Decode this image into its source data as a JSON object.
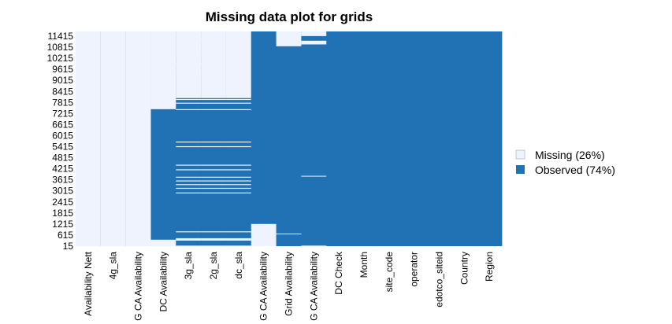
{
  "chart_data": {
    "type": "heatmap",
    "title": "Missing data plot for grids",
    "columns": [
      "Availability Nett",
      "4g_sla",
      "4G CA Availability",
      "DC Availability",
      "3g_sla",
      "2g_sla",
      "dc_sla",
      "3G CA Availability",
      "Grid Availability",
      "2G CA Availability",
      "DC Check",
      "Month",
      "site_code",
      "operator",
      "edotco_siteid",
      "Country",
      "Region"
    ],
    "column_tick_labels": [
      "Availability Nett",
      "4g_sla",
      "G CA Availability",
      "DC Availability",
      "3g_sla",
      "2g_sla",
      "dc_sla",
      "G CA Availability",
      "Grid Availability",
      "G CA Availability",
      "DC Check",
      "Month",
      "site_code",
      "operator",
      "edotco_siteid",
      "Country",
      "Region"
    ],
    "row_tick_labels": [
      "15",
      "615",
      "1215",
      "1815",
      "2415",
      "3015",
      "3615",
      "4215",
      "4815",
      "5415",
      "6015",
      "6615",
      "7215",
      "7815",
      "8415",
      "9015",
      "9615",
      "10215",
      "10815",
      "11415"
    ],
    "row_range": [
      1,
      11600
    ],
    "colors": {
      "missing": "#eef3fd",
      "observed": "#2171b5"
    },
    "legend": [
      {
        "label": "Missing (26%)",
        "state": "missing"
      },
      {
        "label": "Observed (74%)",
        "state": "observed"
      }
    ],
    "legend_position": "right",
    "missing_row_ranges": [
      {
        "column": "Availability Nett",
        "ranges": [
          [
            1,
            11600
          ]
        ]
      },
      {
        "column": "4g_sla",
        "ranges": [
          [
            1,
            11600
          ]
        ]
      },
      {
        "column": "4G CA Availability",
        "ranges": [
          [
            1,
            11600
          ]
        ]
      },
      {
        "column": "DC Availability",
        "ranges": [
          [
            9600,
            10800
          ],
          [
            1,
            350
          ],
          [
            7400,
            11600
          ]
        ]
      },
      {
        "column": "3g_sla",
        "ranges": [
          [
            1,
            30
          ],
          [
            300,
            430
          ],
          [
            750,
            800
          ],
          [
            2850,
            2900
          ],
          [
            3100,
            3150
          ],
          [
            3300,
            3350
          ],
          [
            3500,
            3550
          ],
          [
            3700,
            3750
          ],
          [
            4100,
            4150
          ],
          [
            4350,
            4400
          ],
          [
            5350,
            5400
          ],
          [
            5600,
            5650
          ],
          [
            7350,
            7400
          ],
          [
            7700,
            7750
          ],
          [
            7900,
            7950
          ],
          [
            9400,
            9450
          ],
          [
            9800,
            9900
          ],
          [
            10300,
            10350
          ],
          [
            10500,
            10550
          ],
          [
            10650,
            10700
          ],
          [
            10850,
            10900
          ],
          [
            11000,
            11050
          ],
          [
            11150,
            11250
          ],
          [
            11350,
            11450
          ],
          [
            8000,
            11600
          ]
        ]
      },
      {
        "column": "2g_sla",
        "ranges": [
          [
            1,
            30
          ],
          [
            300,
            430
          ],
          [
            750,
            800
          ],
          [
            2850,
            2900
          ],
          [
            3100,
            3150
          ],
          [
            3300,
            3350
          ],
          [
            3500,
            3550
          ],
          [
            3700,
            3750
          ],
          [
            4100,
            4150
          ],
          [
            4350,
            4400
          ],
          [
            5350,
            5400
          ],
          [
            5600,
            5650
          ],
          [
            7350,
            7400
          ],
          [
            7700,
            7750
          ],
          [
            7900,
            7950
          ],
          [
            9400,
            9450
          ],
          [
            9800,
            9900
          ],
          [
            10300,
            10350
          ],
          [
            10500,
            10550
          ],
          [
            10650,
            10700
          ],
          [
            10850,
            10900
          ],
          [
            11000,
            11050
          ],
          [
            11150,
            11250
          ],
          [
            11350,
            11450
          ],
          [
            8000,
            11600
          ]
        ]
      },
      {
        "column": "dc_sla",
        "ranges": [
          [
            1,
            30
          ],
          [
            300,
            430
          ],
          [
            750,
            800
          ],
          [
            2850,
            2900
          ],
          [
            3100,
            3150
          ],
          [
            3300,
            3350
          ],
          [
            3500,
            3550
          ],
          [
            3700,
            3750
          ],
          [
            4100,
            4150
          ],
          [
            4350,
            4400
          ],
          [
            5350,
            5400
          ],
          [
            5600,
            5650
          ],
          [
            7350,
            7400
          ],
          [
            7700,
            7750
          ],
          [
            7900,
            7950
          ],
          [
            9400,
            9450
          ],
          [
            9800,
            9900
          ],
          [
            10300,
            10350
          ],
          [
            10500,
            10550
          ],
          [
            10650,
            10700
          ],
          [
            10850,
            10900
          ],
          [
            11000,
            11050
          ],
          [
            11150,
            11250
          ],
          [
            11350,
            11450
          ],
          [
            8000,
            11600
          ]
        ]
      },
      {
        "column": "3G CA Availability",
        "ranges": [
          [
            1,
            1200
          ]
        ]
      },
      {
        "column": "Grid Availability",
        "ranges": [
          [
            650,
            680
          ],
          [
            10800,
            11600
          ]
        ]
      },
      {
        "column": "2G CA Availability",
        "ranges": [
          [
            1,
            30
          ],
          [
            3760,
            3800
          ],
          [
            10900,
            11100
          ],
          [
            11350,
            11600
          ]
        ]
      },
      {
        "column": "DC Check",
        "ranges": []
      },
      {
        "column": "Month",
        "ranges": []
      },
      {
        "column": "site_code",
        "ranges": []
      },
      {
        "column": "operator",
        "ranges": []
      },
      {
        "column": "edotco_siteid",
        "ranges": []
      },
      {
        "column": "Country",
        "ranges": []
      },
      {
        "column": "Region",
        "ranges": []
      }
    ]
  }
}
